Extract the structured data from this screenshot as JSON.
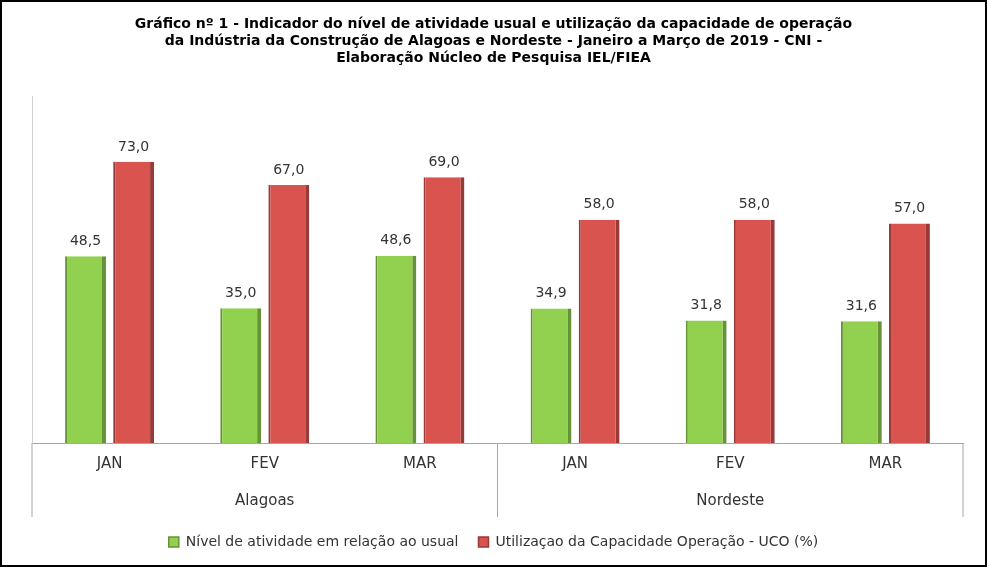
{
  "chart_data": {
    "type": "bar",
    "title": [
      "Gráfico nº 1 - Indicador do nível de atividade usual e utilização da capacidade de operação",
      "da Indústria da Construção de Alagoas e Nordeste - Janeiro a Março de 2019 - CNI -",
      "Elaboração Núcleo de Pesquisa IEL/FIEA"
    ],
    "categories": [
      "JAN",
      "FEV",
      "MAR",
      "JAN",
      "FEV",
      "MAR"
    ],
    "category_groups": [
      "Alagoas",
      "Alagoas",
      "Alagoas",
      "Nordeste",
      "Nordeste",
      "Nordeste"
    ],
    "series": [
      {
        "name": "Nível de atividade em relação ao usual",
        "color": "#92d050",
        "values": [
          48.5,
          35.0,
          48.6,
          34.9,
          31.8,
          31.6
        ],
        "value_labels": [
          "48,5",
          "35,0",
          "48,6",
          "34,9",
          "31,8",
          "31,6"
        ]
      },
      {
        "name": "Utilizaçao da Capacidade Operação - UCO (%)",
        "color": "#d9534f",
        "values": [
          73.0,
          67.0,
          69.0,
          58.0,
          58.0,
          57.0
        ],
        "value_labels": [
          "73,0",
          "67,0",
          "69,0",
          "58,0",
          "58,0",
          "57,0"
        ]
      }
    ],
    "ylim": [
      0,
      90
    ],
    "grid": false,
    "legend": "bottom",
    "data_labels": true,
    "tick_labels": "x"
  }
}
